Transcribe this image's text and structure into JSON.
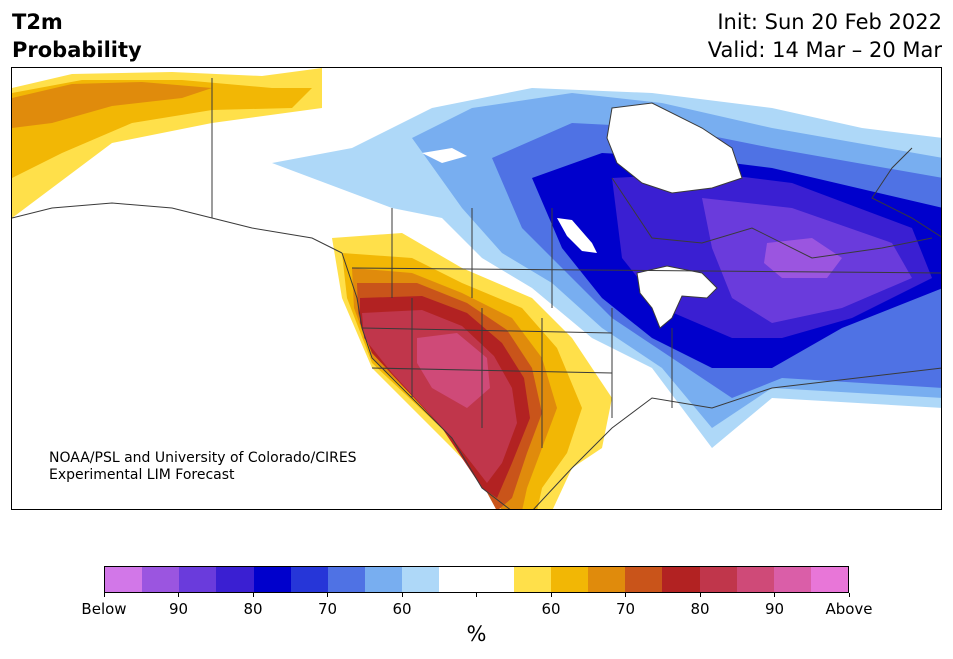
{
  "header": {
    "title_line1": "T2m",
    "title_line2": "Probability",
    "init": "Init: Sun 20 Feb 2022",
    "valid": "Valid: 14 Mar – 20 Mar"
  },
  "credit": {
    "line1": "NOAA/PSL and University of Colorado/CIRES",
    "line2": "Experimental LIM Forecast"
  },
  "legend": {
    "unit": "%",
    "colors": [
      "#d277e8",
      "#9b55e0",
      "#6a3bdc",
      "#3a1fd2",
      "#0000cc",
      "#2636d8",
      "#4f72e4",
      "#78aef0",
      "#aed8f8",
      "#ffffff",
      "#ffffff",
      "#ffe04a",
      "#f2b705",
      "#e08b0c",
      "#c9541a",
      "#b22222",
      "#c0364b",
      "#cf4a78",
      "#da5ea8",
      "#e876d8"
    ],
    "tick_labels": [
      "Below",
      "90",
      "80",
      "70",
      "60",
      "",
      "60",
      "70",
      "80",
      "90",
      "Above"
    ]
  },
  "colors": {
    "below_strong": "#0000cc",
    "above_strong": "#b22222",
    "coast_lines": "#3a3a3a"
  }
}
